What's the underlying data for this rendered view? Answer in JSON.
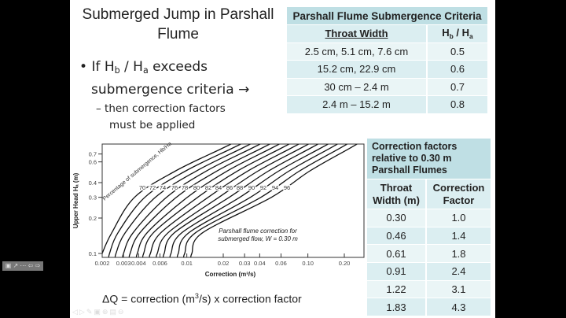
{
  "slide": {
    "title": "Submerged Jump in Parshall Flume",
    "title_lines": [
      "Submerged Jump in Parshall",
      "Flume"
    ],
    "bullet": {
      "prefix": "If H",
      "sub_b": "b",
      "mid": " / H",
      "sub_a": "a",
      "suffix": " exceeds",
      "line2": "submergence criteria →"
    },
    "sub_bullet": [
      "– then correction factors",
      "must be applied"
    ],
    "formula_pre": "ΔQ = correction (m",
    "formula_sup": "3",
    "formula_post": "/s) x correction factor"
  },
  "criteria_table": {
    "title": "Parshall Flume Submergence Criteria",
    "col1": "Throat Width",
    "col2_h": "H",
    "col2_b": "b",
    "col2_mid": " / H",
    "col2_a": "a",
    "rows": [
      {
        "width": "2.5 cm, 5.1 cm, 7.6 cm",
        "ratio": "0.5"
      },
      {
        "width": "15.2 cm, 22.9 cm",
        "ratio": "0.6"
      },
      {
        "width": "30 cm – 2.4 m",
        "ratio": "0.7"
      },
      {
        "width": "2.4 m – 15.2 m",
        "ratio": "0.8"
      }
    ]
  },
  "factor_table": {
    "title_lines": [
      "Correction factors",
      "relative to 0.30 m",
      "Parshall Flumes"
    ],
    "col1_lines": [
      "Throat",
      "Width (m)"
    ],
    "col2_lines": [
      "Correction",
      "Factor"
    ],
    "rows": [
      {
        "width": "0.30",
        "factor": "1.0"
      },
      {
        "width": "0.46",
        "factor": "1.4"
      },
      {
        "width": "0.61",
        "factor": "1.8"
      },
      {
        "width": "0.91",
        "factor": "2.4"
      },
      {
        "width": "1.22",
        "factor": "3.1"
      },
      {
        "width": "1.83",
        "factor": "4.3"
      }
    ]
  },
  "chart_data": {
    "type": "line",
    "xlabel": "Correction (m³/s)",
    "ylabel": "Upper Head Hₐ (m)",
    "xscale": "log",
    "yscale": "log",
    "xlim": [
      0.002,
      0.29
    ],
    "ylim": [
      0.093,
      0.85
    ],
    "xticks": [
      "0.002",
      "0.003",
      "0.004",
      "0.006",
      "0.01",
      "0.02",
      "0.03",
      "0.04",
      "0.06",
      "0.10",
      "0.20"
    ],
    "yticks": [
      "0.1",
      "0.2",
      "0.3",
      "0.4",
      "0.6",
      "0.7"
    ],
    "curve_label_title": "Percentage of submergence, Hb/Ha",
    "annotation_lines": [
      "Parshall flume correction for",
      "submerged flow, W = 0.30 m"
    ],
    "grid": false,
    "series_H": [
      0.1,
      0.15,
      0.3,
      0.5,
      0.78
    ],
    "series": [
      {
        "name": "70",
        "correction": [
          0.002,
          0.0024,
          0.0037,
          0.008,
          0.0195
        ]
      },
      {
        "name": "72",
        "correction": [
          0.0023,
          0.0027,
          0.0045,
          0.0097,
          0.0235
        ]
      },
      {
        "name": "74",
        "correction": [
          0.0026,
          0.0031,
          0.0055,
          0.0119,
          0.0283
        ]
      },
      {
        "name": "76",
        "correction": [
          0.003,
          0.0036,
          0.0068,
          0.0144,
          0.0341
        ]
      },
      {
        "name": "78",
        "correction": [
          0.0034,
          0.0041,
          0.0082,
          0.0176,
          0.0411
        ]
      },
      {
        "name": "80",
        "correction": [
          0.0039,
          0.0047,
          0.0101,
          0.0214,
          0.0494
        ]
      },
      {
        "name": "82",
        "correction": [
          0.0044,
          0.0053,
          0.0123,
          0.026,
          0.0596
        ]
      },
      {
        "name": "84",
        "correction": [
          0.005,
          0.0061,
          0.015,
          0.0317,
          0.0718
        ]
      },
      {
        "name": "86",
        "correction": [
          0.0057,
          0.007,
          0.0184,
          0.0385,
          0.0865
        ]
      },
      {
        "name": "88",
        "correction": [
          0.0065,
          0.0079,
          0.0224,
          0.047,
          0.104
        ]
      },
      {
        "name": "90",
        "correction": [
          0.0074,
          0.0091,
          0.0274,
          0.0571,
          0.126
        ]
      },
      {
        "name": "92",
        "correction": [
          0.0085,
          0.0104,
          0.0335,
          0.0695,
          0.151
        ]
      },
      {
        "name": "94",
        "correction": [
          0.0096,
          0.0118,
          0.0409,
          0.0847,
          0.182
        ]
      },
      {
        "name": "96",
        "correction": [
          0.011,
          0.0135,
          0.05,
          0.103,
          0.22
        ]
      }
    ]
  },
  "player": {
    "toolbar": "▣ ↗ ⋯ ⇦ ⇨",
    "nav": "◁▷✎▣⊕▤⊖"
  }
}
